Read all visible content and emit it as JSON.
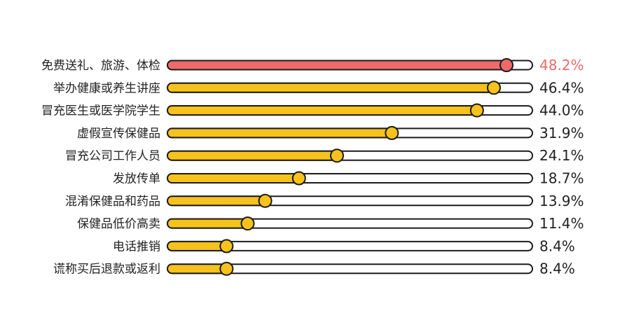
{
  "chart_data": {
    "type": "bar",
    "orientation": "horizontal",
    "categories": [
      "免费送礼、旅游、体检",
      "举办健康或养生讲座",
      "冒充医生或医学院学生",
      "虚假宣传保健品",
      "冒充公司工作人员",
      "发放传单",
      "混淆保健品和药品",
      "保健品低价高卖",
      "电话推销",
      "谎称买后退款或返利"
    ],
    "values": [
      48.2,
      46.4,
      44.0,
      31.9,
      24.1,
      18.7,
      13.9,
      11.4,
      8.4,
      8.4
    ],
    "value_labels": [
      "48.2%",
      "46.4%",
      "44.0%",
      "31.9%",
      "24.1%",
      "18.7%",
      "13.9%",
      "11.4%",
      "8.4%",
      "8.4%"
    ],
    "unit": "%",
    "highlight_index": 0,
    "colors": {
      "highlight": "#ef6a6a",
      "bar": "#f7c21b",
      "track": "#ffffff",
      "outline": "#1c1c1c",
      "label": "#222222",
      "highlight_label": "#ef6a6a"
    },
    "grid": false,
    "legend": "none"
  }
}
